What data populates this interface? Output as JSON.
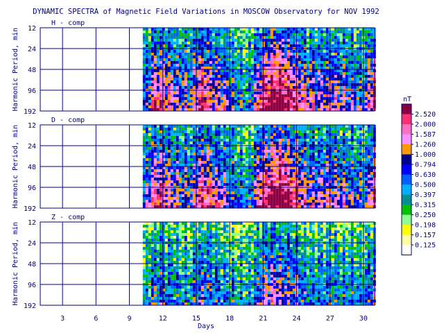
{
  "chart_data": {
    "type": "heatmap",
    "title": "DYNAMIC SPECTRA of Magnetic Field Variations in MOSCOW Observatory for NOV 1992",
    "xlabel": "Days",
    "ylabel": "Harmonic Period, min",
    "x_ticks": [
      "3",
      "6",
      "9",
      "12",
      "15",
      "18",
      "21",
      "24",
      "27",
      "30"
    ],
    "x_tick_values": [
      3,
      6,
      9,
      12,
      15,
      18,
      21,
      24,
      27,
      30
    ],
    "xlim": [
      1,
      31
    ],
    "y_ticks": [
      "12",
      "24",
      "48",
      "96",
      "192"
    ],
    "y_tick_values": [
      12,
      24,
      48,
      96,
      192
    ],
    "ylim": [
      12,
      192
    ],
    "y_scale": "log2",
    "data_start_day": 10.2,
    "panels": [
      {
        "label": "H - comp",
        "intensity": [
          0.35,
          0.7,
          0.6,
          0.5,
          0.45,
          0.75,
          0.6,
          0.5,
          0.35,
          0.25,
          0.7,
          0.85,
          0.9,
          0.7,
          0.55,
          0.5,
          0.55,
          0.5,
          0.45,
          0.35,
          0.8
        ]
      },
      {
        "label": "D - comp",
        "intensity": [
          0.35,
          0.7,
          0.6,
          0.5,
          0.45,
          0.75,
          0.6,
          0.5,
          0.35,
          0.25,
          0.7,
          0.85,
          0.9,
          0.7,
          0.55,
          0.5,
          0.55,
          0.5,
          0.45,
          0.35,
          0.8
        ]
      },
      {
        "label": "Z - comp",
        "intensity": [
          0.2,
          0.4,
          0.35,
          0.3,
          0.3,
          0.45,
          0.35,
          0.3,
          0.25,
          0.2,
          0.45,
          0.55,
          0.55,
          0.45,
          0.35,
          0.3,
          0.35,
          0.3,
          0.3,
          0.25,
          0.5
        ]
      }
    ],
    "legend": {
      "unit": "nT",
      "values": [
        "2.520",
        "2.000",
        "1.587",
        "1.260",
        "1.000",
        "0.794",
        "0.630",
        "0.500",
        "0.397",
        "0.315",
        "0.250",
        "0.198",
        "0.157",
        "0.125"
      ],
      "colors": [
        "#8b0040",
        "#ff3070",
        "#ff70c0",
        "#ff90ff",
        "#ff9900",
        "#00008b",
        "#0000ff",
        "#0060ff",
        "#00b0ff",
        "#009090",
        "#00c000",
        "#90ff90",
        "#ffff00",
        "#ffffa0",
        "#ffffff"
      ]
    },
    "grid": true,
    "legend_position": "right"
  }
}
